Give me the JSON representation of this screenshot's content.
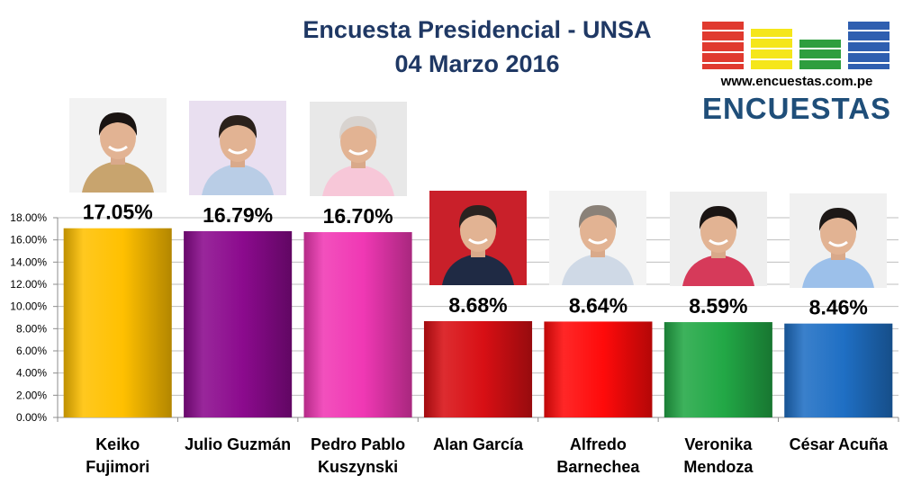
{
  "title_line1": "Encuesta Presidencial - UNSA",
  "title_line2": "04 Marzo 2016",
  "logo": {
    "url_text": "www.encuestas.com.pe",
    "wordmark": "ENCUESTAS",
    "block_colors": [
      "#e03a2f",
      "#f5e61a",
      "#2e9e3e",
      "#2f5fb0"
    ]
  },
  "chart_data": {
    "type": "bar",
    "categories": [
      [
        "Keiko",
        "Fujimori"
      ],
      [
        "Julio Guzmán"
      ],
      [
        "Pedro Pablo",
        "Kuszynski"
      ],
      [
        "Alan García"
      ],
      [
        "Alfredo",
        "Barnechea"
      ],
      [
        "Veronika",
        "Mendoza"
      ],
      [
        "César Acuña"
      ]
    ],
    "values": [
      17.05,
      16.79,
      16.7,
      8.68,
      8.64,
      8.59,
      8.46
    ],
    "value_labels": [
      "17.05%",
      "16.79%",
      "16.70%",
      "8.68%",
      "8.64%",
      "8.59%",
      "8.46%"
    ],
    "colors": [
      "#ffc000",
      "#8b0a8d",
      "#f038b4",
      "#d80f14",
      "#ff0a0a",
      "#22a846",
      "#1f6fc4"
    ],
    "ylim": [
      0,
      18
    ],
    "ytick_step": 2,
    "ytick_format": "percent_2dp",
    "grid": true,
    "legend": "none",
    "candidate_photos": true
  }
}
